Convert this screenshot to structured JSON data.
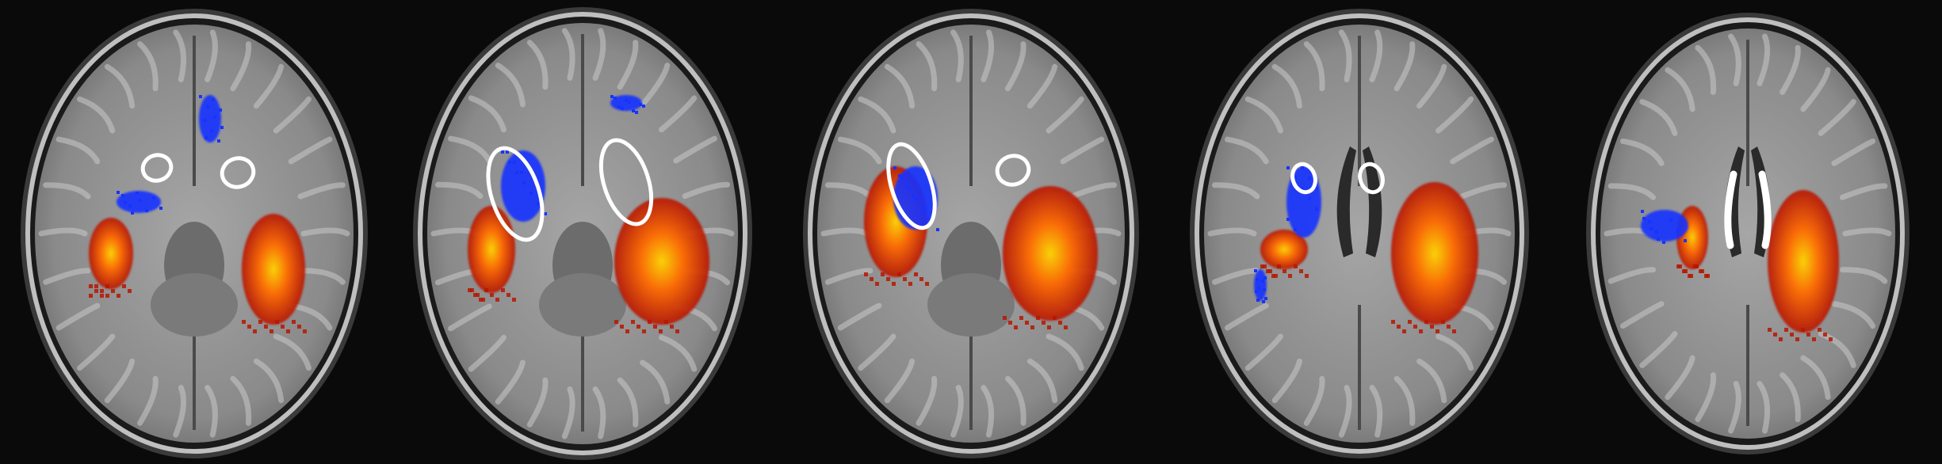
{
  "figure": {
    "panel_count": 5,
    "colors": {
      "background": "#0a0a0a",
      "brain_gray": "#8d8d8d",
      "skull_ring": "#bfbfbf",
      "overlay_red": "#b81500",
      "overlay_orange": "#ff6a00",
      "overlay_yellow": "#ffd400",
      "overlay_blue": "#1733ff",
      "outline_white": "#ffffff"
    }
  }
}
